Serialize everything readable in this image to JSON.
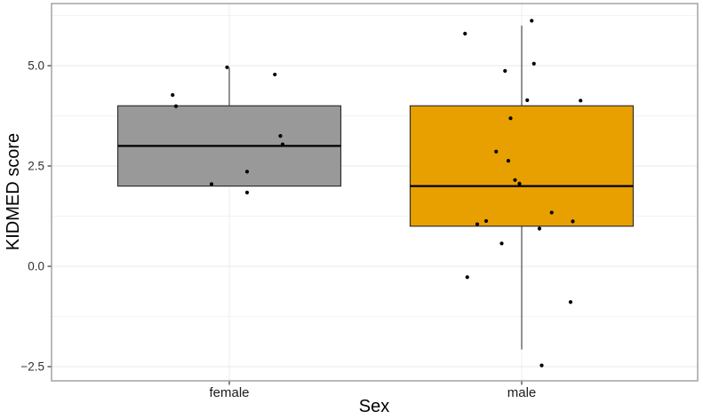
{
  "figure": {
    "background": "#ffffff"
  },
  "chart_data": {
    "type": "boxplot",
    "title": "",
    "xlabel": "Sex",
    "ylabel": "KIDMED score",
    "categories": [
      "female",
      "male"
    ],
    "ylim": [
      -2.85,
      6.55
    ],
    "yticks": [
      5.0,
      2.5,
      0.0,
      -2.5
    ],
    "ytick_labels": [
      "5.0",
      "2.5",
      "0.0",
      "−2.5"
    ],
    "yminor": [
      6.25,
      3.75,
      1.25,
      -1.25
    ],
    "grid": "on",
    "legend": "none",
    "panel_border_color": "#9c9c9c",
    "grid_major_color": "#e9e9e9",
    "grid_minor_color": "#f3f3f3",
    "category_gridline_color": "#ededed",
    "tick_color": "#333333",
    "axis_text_color": "#303030",
    "point_color": "#000000",
    "box_outline_color": "#2f2f2f",
    "median_color": "#000000",
    "whisker_color": "#4a4a4a",
    "series": [
      {
        "name": "female",
        "fill": "#999999",
        "q1": 2.0,
        "median": 3.0,
        "q3": 4.0,
        "whisker_low": 2.0,
        "whisker_high": 4.95,
        "points": [
          {
            "dx": -0.02,
            "y": 4.96
          },
          {
            "dx": 0.41,
            "y": 4.78
          },
          {
            "dx": -0.51,
            "y": 4.27
          },
          {
            "dx": -0.48,
            "y": 3.99
          },
          {
            "dx": 0.46,
            "y": 3.25
          },
          {
            "dx": 0.48,
            "y": 3.04
          },
          {
            "dx": 0.16,
            "y": 2.36
          },
          {
            "dx": -0.16,
            "y": 2.05
          },
          {
            "dx": 0.16,
            "y": 1.84
          }
        ]
      },
      {
        "name": "male",
        "fill": "#E7A000",
        "q1": 1.0,
        "median": 2.0,
        "q3": 4.0,
        "whisker_low": -2.07,
        "whisker_high": 6.0,
        "points": [
          {
            "dx": 0.09,
            "y": 6.12
          },
          {
            "dx": -0.51,
            "y": 5.8
          },
          {
            "dx": 0.11,
            "y": 5.05
          },
          {
            "dx": -0.15,
            "y": 4.87
          },
          {
            "dx": 0.05,
            "y": 4.14
          },
          {
            "dx": 0.53,
            "y": 4.13
          },
          {
            "dx": -0.1,
            "y": 3.69
          },
          {
            "dx": -0.23,
            "y": 2.86
          },
          {
            "dx": -0.12,
            "y": 2.63
          },
          {
            "dx": -0.06,
            "y": 2.15
          },
          {
            "dx": -0.02,
            "y": 2.06
          },
          {
            "dx": 0.27,
            "y": 1.34
          },
          {
            "dx": -0.32,
            "y": 1.13
          },
          {
            "dx": 0.46,
            "y": 1.12
          },
          {
            "dx": -0.4,
            "y": 1.05
          },
          {
            "dx": 0.16,
            "y": 0.94
          },
          {
            "dx": -0.18,
            "y": 0.57
          },
          {
            "dx": -0.49,
            "y": -0.27
          },
          {
            "dx": 0.44,
            "y": -0.89
          },
          {
            "dx": 0.18,
            "y": -2.47
          }
        ]
      }
    ]
  }
}
